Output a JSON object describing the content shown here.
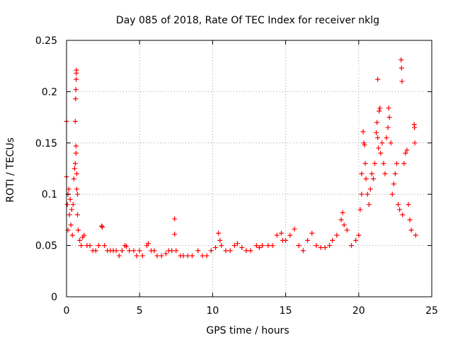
{
  "chart_data": {
    "type": "scatter",
    "title": "Day 085 of 2018, Rate Of TEC Index for receiver nklg",
    "xlabel": "GPS time / hours",
    "ylabel": "ROTI / TECUs",
    "xlim": [
      0,
      25
    ],
    "ylim": [
      0,
      0.25
    ],
    "x_ticks": [
      0,
      5,
      10,
      15,
      20,
      25
    ],
    "x_tick_labels": [
      "0",
      "5",
      "10",
      "15",
      "20",
      "25"
    ],
    "y_ticks": [
      0,
      0.05,
      0.1,
      0.15,
      0.2,
      0.25
    ],
    "y_tick_labels": [
      "0",
      "0.05",
      "0.1",
      "0.15",
      "0.2",
      "0.25"
    ],
    "grid": true,
    "marker": "+",
    "series": [
      {
        "name": "ROTI",
        "color": "#ff0000",
        "points": [
          [
            0.0,
            0.171
          ],
          [
            0.0,
            0.117
          ],
          [
            0.05,
            0.09
          ],
          [
            0.1,
            0.065
          ],
          [
            0.1,
            0.1
          ],
          [
            0.15,
            0.105
          ],
          [
            0.2,
            0.08
          ],
          [
            0.25,
            0.095
          ],
          [
            0.3,
            0.07
          ],
          [
            0.35,
            0.085
          ],
          [
            0.4,
            0.06
          ],
          [
            0.45,
            0.09
          ],
          [
            0.5,
            0.115
          ],
          [
            0.55,
            0.125
          ],
          [
            0.6,
            0.13
          ],
          [
            0.65,
            0.14
          ],
          [
            0.65,
            0.147
          ],
          [
            0.7,
            0.12
          ],
          [
            0.7,
            0.105
          ],
          [
            0.75,
            0.1
          ],
          [
            0.75,
            0.08
          ],
          [
            0.6,
            0.171
          ],
          [
            0.62,
            0.193
          ],
          [
            0.64,
            0.202
          ],
          [
            0.66,
            0.212
          ],
          [
            0.67,
            0.218
          ],
          [
            0.68,
            0.221
          ],
          [
            0.8,
            0.065
          ],
          [
            0.9,
            0.055
          ],
          [
            1.0,
            0.05
          ],
          [
            1.1,
            0.058
          ],
          [
            1.2,
            0.06
          ],
          [
            1.4,
            0.05
          ],
          [
            1.6,
            0.05
          ],
          [
            1.8,
            0.045
          ],
          [
            2.0,
            0.045
          ],
          [
            2.2,
            0.05
          ],
          [
            2.4,
            0.069
          ],
          [
            2.45,
            0.068
          ],
          [
            2.6,
            0.05
          ],
          [
            2.8,
            0.045
          ],
          [
            3.0,
            0.045
          ],
          [
            3.2,
            0.045
          ],
          [
            3.4,
            0.045
          ],
          [
            3.6,
            0.04
          ],
          [
            3.8,
            0.045
          ],
          [
            4.0,
            0.05
          ],
          [
            4.1,
            0.049
          ],
          [
            4.3,
            0.045
          ],
          [
            4.6,
            0.045
          ],
          [
            4.8,
            0.04
          ],
          [
            5.0,
            0.045
          ],
          [
            5.2,
            0.04
          ],
          [
            5.5,
            0.05
          ],
          [
            5.6,
            0.052
          ],
          [
            5.8,
            0.045
          ],
          [
            6.0,
            0.045
          ],
          [
            6.2,
            0.04
          ],
          [
            6.5,
            0.04
          ],
          [
            6.8,
            0.042
          ],
          [
            7.0,
            0.045
          ],
          [
            7.2,
            0.045
          ],
          [
            7.4,
            0.076
          ],
          [
            7.4,
            0.061
          ],
          [
            7.5,
            0.045
          ],
          [
            7.8,
            0.04
          ],
          [
            8.0,
            0.04
          ],
          [
            8.3,
            0.04
          ],
          [
            8.6,
            0.04
          ],
          [
            9.0,
            0.045
          ],
          [
            9.3,
            0.04
          ],
          [
            9.6,
            0.04
          ],
          [
            9.9,
            0.045
          ],
          [
            10.2,
            0.048
          ],
          [
            10.4,
            0.062
          ],
          [
            10.5,
            0.055
          ],
          [
            10.6,
            0.05
          ],
          [
            10.9,
            0.045
          ],
          [
            11.2,
            0.045
          ],
          [
            11.5,
            0.05
          ],
          [
            11.7,
            0.052
          ],
          [
            12.0,
            0.048
          ],
          [
            12.3,
            0.045
          ],
          [
            12.6,
            0.045
          ],
          [
            13.0,
            0.05
          ],
          [
            13.2,
            0.048
          ],
          [
            13.4,
            0.05
          ],
          [
            13.8,
            0.05
          ],
          [
            14.1,
            0.05
          ],
          [
            14.4,
            0.06
          ],
          [
            14.7,
            0.062
          ],
          [
            14.8,
            0.055
          ],
          [
            15.0,
            0.055
          ],
          [
            15.3,
            0.06
          ],
          [
            15.6,
            0.066
          ],
          [
            15.9,
            0.05
          ],
          [
            16.2,
            0.045
          ],
          [
            16.5,
            0.055
          ],
          [
            16.8,
            0.062
          ],
          [
            17.1,
            0.05
          ],
          [
            17.4,
            0.048
          ],
          [
            17.7,
            0.048
          ],
          [
            18.0,
            0.05
          ],
          [
            18.2,
            0.055
          ],
          [
            18.5,
            0.06
          ],
          [
            18.8,
            0.075
          ],
          [
            18.9,
            0.082
          ],
          [
            19.0,
            0.07
          ],
          [
            19.2,
            0.065
          ],
          [
            19.5,
            0.05
          ],
          [
            19.8,
            0.055
          ],
          [
            20.0,
            0.06
          ],
          [
            20.1,
            0.085
          ],
          [
            20.2,
            0.1
          ],
          [
            20.2,
            0.12
          ],
          [
            20.3,
            0.161
          ],
          [
            20.35,
            0.15
          ],
          [
            20.4,
            0.148
          ],
          [
            20.45,
            0.13
          ],
          [
            20.5,
            0.115
          ],
          [
            20.6,
            0.1
          ],
          [
            20.7,
            0.09
          ],
          [
            20.8,
            0.105
          ],
          [
            20.9,
            0.12
          ],
          [
            21.0,
            0.115
          ],
          [
            21.1,
            0.13
          ],
          [
            21.2,
            0.16
          ],
          [
            21.25,
            0.17
          ],
          [
            21.3,
            0.155
          ],
          [
            21.35,
            0.145
          ],
          [
            21.4,
            0.181
          ],
          [
            21.45,
            0.184
          ],
          [
            21.3,
            0.212
          ],
          [
            21.5,
            0.14
          ],
          [
            21.6,
            0.15
          ],
          [
            21.7,
            0.13
          ],
          [
            21.8,
            0.12
          ],
          [
            21.9,
            0.155
          ],
          [
            22.0,
            0.165
          ],
          [
            22.05,
            0.184
          ],
          [
            22.1,
            0.175
          ],
          [
            22.2,
            0.15
          ],
          [
            22.3,
            0.1
          ],
          [
            22.4,
            0.11
          ],
          [
            22.5,
            0.12
          ],
          [
            22.6,
            0.13
          ],
          [
            22.7,
            0.09
          ],
          [
            22.8,
            0.085
          ],
          [
            22.9,
            0.231
          ],
          [
            22.93,
            0.223
          ],
          [
            22.96,
            0.21
          ],
          [
            23.0,
            0.08
          ],
          [
            23.1,
            0.13
          ],
          [
            23.2,
            0.14
          ],
          [
            23.3,
            0.143
          ],
          [
            23.4,
            0.09
          ],
          [
            23.5,
            0.075
          ],
          [
            23.6,
            0.065
          ],
          [
            23.8,
            0.168
          ],
          [
            23.82,
            0.165
          ],
          [
            23.84,
            0.15
          ],
          [
            23.9,
            0.06
          ]
        ]
      }
    ]
  }
}
